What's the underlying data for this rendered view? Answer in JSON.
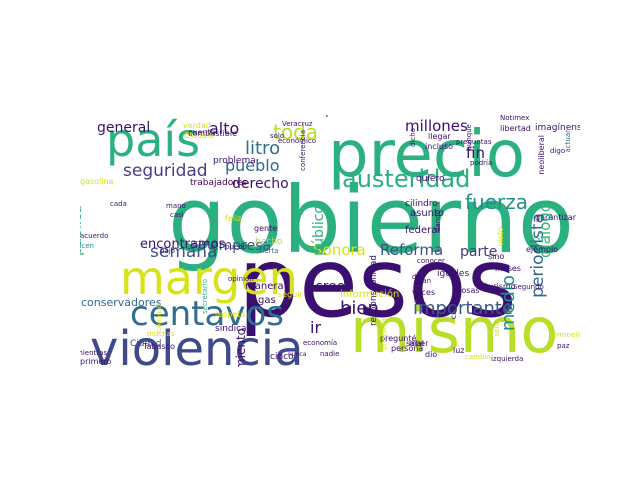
{
  "words": [
    "gobierno",
    "pesos",
    "precio",
    "mismo",
    "violencia",
    "margen",
    "país",
    "centavos",
    "austeridad",
    "toda",
    "fuerza",
    "periodista",
    "seguridad",
    "semana",
    "medio",
    "bien",
    "importante",
    "alto",
    "litro",
    "pueblo",
    "millones",
    "prensa",
    "Reforma",
    "parte",
    "mujeres",
    "diálogo",
    "fin",
    "general",
    "empresa",
    "derecho",
    "encontramos",
    "creo",
    "ir",
    "Sonora",
    "pública",
    "público",
    "conservadores",
    "movimiento",
    "Ciudad",
    "trabajadores",
    "combustible",
    "cuenta",
    "federal",
    "asunto",
    "quiero",
    "iguales",
    "cosas",
    "información",
    "responsabilidad",
    "problema",
    "gasolina",
    "cilindro",
    "imagínense",
    "libertad",
    "Notimex",
    "preguntas",
    "gente",
    "hecho",
    "alerta",
    "sindicato",
    "respeto",
    "tolerancia",
    "muchas",
    "cinco",
    "nunca",
    "secretario",
    "manera",
    "gas",
    "seguir",
    "primero",
    "Tabasco",
    "mientras",
    "dicen",
    "acuerdo",
    "cada",
    "mano",
    "casi",
    "bajo",
    "feliz",
    "puedo",
    "verdad",
    "Claudia",
    "solo",
    "Veracruz",
    "Hermosillo",
    "mesas",
    "conferencia",
    "ciudadanos",
    "compañeros",
    "reunión",
    "económico",
    "dicho",
    "llegar",
    "incluso",
    "aunque",
    "podría",
    "visto",
    "conocer",
    "dar",
    "gran",
    "veces",
    "saber",
    "pregunté",
    "persona",
    "dio",
    "mal",
    "nadie",
    "economía",
    "ocho",
    "opinión",
    "sino",
    "meses",
    "ejemplo",
    "Segundo",
    "turismo",
    "dando",
    "cabo",
    "garantizar",
    "neoliberal",
    "digo",
    "actuar",
    "paz",
    "termoeléctrica",
    "seis",
    "luz",
    "izquierda",
    "pregunta",
    "cambio",
    "ahora",
    "gestión",
    "mercado"
  ]
}
